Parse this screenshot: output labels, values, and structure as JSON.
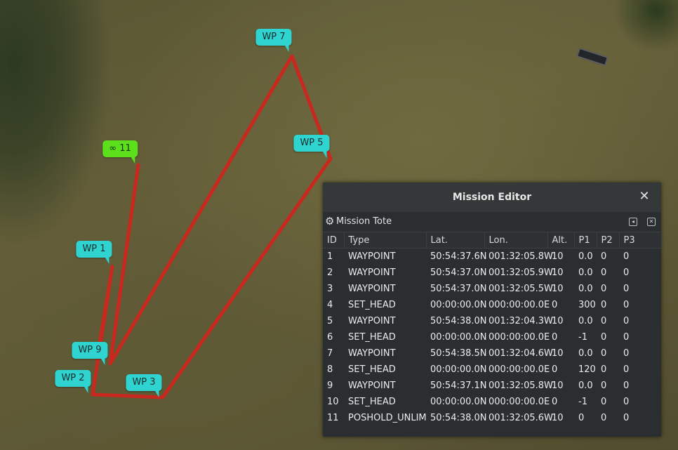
{
  "map": {
    "markers": [
      {
        "label": "WP 7",
        "style": "cyan"
      },
      {
        "label": "WP 5",
        "style": "cyan"
      },
      {
        "label": "∞ 11",
        "style": "green"
      },
      {
        "label": "WP 1",
        "style": "cyan"
      },
      {
        "label": "WP 9",
        "style": "cyan"
      },
      {
        "label": "WP 2",
        "style": "cyan"
      },
      {
        "label": "WP 3",
        "style": "cyan"
      }
    ],
    "route_color": "#c8281e"
  },
  "editor": {
    "title": "Mission Editor",
    "close_icon": "close-icon",
    "toolbar": {
      "label": "Mission Tote",
      "icon": "gear-icon"
    },
    "columns": [
      "ID",
      "Type",
      "Lat.",
      "Lon.",
      "Alt.",
      "P1",
      "P2",
      "P3"
    ],
    "rows": [
      [
        "1",
        "WAYPOINT",
        "50:54:37.6N",
        "001:32:05.8W",
        "10",
        "0.0",
        "0",
        "0"
      ],
      [
        "2",
        "WAYPOINT",
        "50:54:37.0N",
        "001:32:05.9W",
        "10",
        "0.0",
        "0",
        "0"
      ],
      [
        "3",
        "WAYPOINT",
        "50:54:37.0N",
        "001:32:05.5W",
        "10",
        "0.0",
        "0",
        "0"
      ],
      [
        "4",
        "SET_HEAD",
        "00:00:00.0N",
        "000:00:00.0E",
        "0",
        "300",
        "0",
        "0"
      ],
      [
        "5",
        "WAYPOINT",
        "50:54:38.0N",
        "001:32:04.3W",
        "10",
        "0.0",
        "0",
        "0"
      ],
      [
        "6",
        "SET_HEAD",
        "00:00:00.0N",
        "000:00:00.0E",
        "0",
        "-1",
        "0",
        "0"
      ],
      [
        "7",
        "WAYPOINT",
        "50:54:38.5N",
        "001:32:04.6W",
        "10",
        "0.0",
        "0",
        "0"
      ],
      [
        "8",
        "SET_HEAD",
        "00:00:00.0N",
        "000:00:00.0E",
        "0",
        "120",
        "0",
        "0"
      ],
      [
        "9",
        "WAYPOINT",
        "50:54:37.1N",
        "001:32:05.8W",
        "10",
        "0.0",
        "0",
        "0"
      ],
      [
        "10",
        "SET_HEAD",
        "00:00:00.0N",
        "000:00:00.0E",
        "0",
        "-1",
        "0",
        "0"
      ],
      [
        "11",
        "POSHOLD_UNLIM",
        "50:54:38.0N",
        "001:32:05.6W",
        "10",
        "0",
        "0",
        "0"
      ]
    ]
  }
}
